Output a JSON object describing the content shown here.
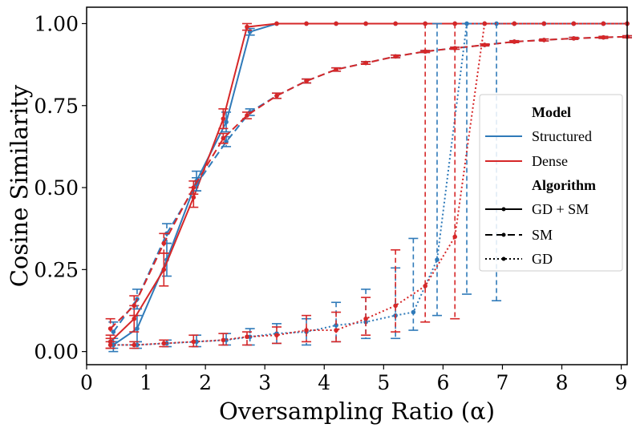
{
  "chart_data": {
    "type": "line",
    "title": "",
    "xlabel": "Oversampling Ratio (α)",
    "ylabel": "Cosine Similarity",
    "xlim": [
      0,
      9.1
    ],
    "ylim": [
      -0.04,
      1.05
    ],
    "xticks": [
      0,
      1,
      2,
      3,
      4,
      5,
      6,
      7,
      8,
      9
    ],
    "yticks": [
      0.0,
      0.25,
      0.5,
      0.75,
      1.0
    ],
    "xtick_labels": [
      "0",
      "1",
      "2",
      "3",
      "4",
      "5",
      "6",
      "7",
      "8",
      "9"
    ],
    "ytick_labels": [
      "0.00",
      "0.25",
      "0.50",
      "0.75",
      "1.00"
    ],
    "grid": false,
    "legend_placement": "center-right",
    "colors": {
      "Structured": "#2f7ab9",
      "Dense": "#d62728"
    },
    "legend": {
      "model_title": "Model",
      "models": [
        "Structured",
        "Dense"
      ],
      "algorithm_title": "Algorithm",
      "algorithms": [
        "GD + SM",
        "SM",
        "GD"
      ]
    },
    "series": [
      {
        "name": "Structured",
        "algorithm": "GD + SM",
        "style": "solid",
        "x": [
          0.45,
          0.85,
          1.35,
          1.85,
          2.35,
          2.75,
          3.2,
          3.7,
          4.2,
          4.7,
          5.2,
          5.7,
          6.2,
          6.7,
          7.2,
          7.7,
          8.2,
          8.7,
          9.1
        ],
        "y": [
          0.02,
          0.07,
          0.28,
          0.52,
          0.7,
          0.975,
          1.0,
          1.0,
          1.0,
          1.0,
          1.0,
          1.0,
          1.0,
          1.0,
          1.0,
          1.0,
          1.0,
          1.0,
          1.0
        ],
        "err": [
          0.02,
          0.04,
          0.05,
          0.03,
          0.03,
          0.01,
          0,
          0,
          0,
          0,
          0,
          0,
          0,
          0,
          0,
          0,
          0,
          0,
          0
        ]
      },
      {
        "name": "Dense",
        "algorithm": "GD + SM",
        "style": "solid",
        "x": [
          0.4,
          0.8,
          1.3,
          1.8,
          2.3,
          2.7,
          3.2,
          3.7,
          4.2,
          4.7,
          5.2,
          5.7,
          6.2,
          6.7,
          7.2,
          7.7,
          8.2,
          8.7,
          9.1
        ],
        "y": [
          0.03,
          0.1,
          0.25,
          0.47,
          0.71,
          0.99,
          1.0,
          1.0,
          1.0,
          1.0,
          1.0,
          1.0,
          1.0,
          1.0,
          1.0,
          1.0,
          1.0,
          1.0,
          1.0
        ],
        "err": [
          0.02,
          0.04,
          0.05,
          0.03,
          0.03,
          0.01,
          0,
          0,
          0,
          0,
          0,
          0,
          0,
          0,
          0,
          0,
          0,
          0,
          0
        ]
      },
      {
        "name": "Structured",
        "algorithm": "SM",
        "style": "dashed",
        "x": [
          0.45,
          0.85,
          1.35,
          1.85,
          2.35,
          2.75,
          3.2,
          3.7,
          4.2,
          4.7,
          5.2,
          5.7,
          6.2,
          6.7,
          7.2,
          7.7,
          8.2,
          8.7,
          9.1
        ],
        "y": [
          0.06,
          0.16,
          0.36,
          0.51,
          0.64,
          0.73,
          0.78,
          0.825,
          0.86,
          0.88,
          0.9,
          0.915,
          0.925,
          0.935,
          0.945,
          0.95,
          0.955,
          0.958,
          0.96
        ],
        "err": [
          0.03,
          0.03,
          0.03,
          0.02,
          0.015,
          0.01,
          0.008,
          0.006,
          0.005,
          0.004,
          0.004,
          0.003,
          0.003,
          0.003,
          0.003,
          0.003,
          0.003,
          0.003,
          0.003
        ]
      },
      {
        "name": "Dense",
        "algorithm": "SM",
        "style": "dashed",
        "x": [
          0.4,
          0.8,
          1.3,
          1.8,
          2.3,
          2.7,
          3.2,
          3.7,
          4.2,
          4.7,
          5.2,
          5.7,
          6.2,
          6.7,
          7.2,
          7.7,
          8.2,
          8.7,
          9.1
        ],
        "y": [
          0.07,
          0.14,
          0.33,
          0.5,
          0.65,
          0.72,
          0.78,
          0.825,
          0.86,
          0.88,
          0.9,
          0.915,
          0.925,
          0.935,
          0.945,
          0.95,
          0.955,
          0.958,
          0.96
        ],
        "err": [
          0.03,
          0.03,
          0.03,
          0.02,
          0.015,
          0.01,
          0.008,
          0.006,
          0.005,
          0.004,
          0.004,
          0.003,
          0.003,
          0.003,
          0.003,
          0.003,
          0.003,
          0.003,
          0.003
        ]
      },
      {
        "name": "Structured",
        "algorithm": "GD",
        "style": "dotted",
        "x": [
          0.45,
          0.85,
          1.35,
          1.85,
          2.35,
          2.75,
          3.2,
          3.7,
          4.2,
          4.7,
          5.2,
          5.5,
          5.9,
          6.4,
          6.9,
          7.2,
          7.7,
          8.2,
          8.7,
          9.1
        ],
        "y": [
          0.02,
          0.02,
          0.025,
          0.03,
          0.035,
          0.045,
          0.055,
          0.06,
          0.08,
          0.09,
          0.11,
          0.12,
          0.28,
          1.0,
          1.0,
          1.0,
          1.0,
          1.0,
          1.0,
          1.0
        ],
        "lo": [
          0.01,
          0.01,
          0.015,
          0.015,
          0.02,
          0.02,
          0.025,
          0.02,
          0.03,
          0.04,
          0.04,
          0.065,
          0.11,
          0.175,
          0.155,
          null,
          null,
          null,
          null,
          null
        ],
        "hi": [
          0.03,
          0.03,
          0.035,
          0.05,
          0.055,
          0.07,
          0.085,
          0.1,
          0.15,
          0.19,
          0.255,
          0.345,
          1.0,
          1.0,
          1.0,
          null,
          null,
          null,
          null,
          null
        ]
      },
      {
        "name": "Dense",
        "algorithm": "GD",
        "style": "dotted",
        "x": [
          0.4,
          0.8,
          1.3,
          1.8,
          2.3,
          2.7,
          3.2,
          3.7,
          4.2,
          4.7,
          5.2,
          5.7,
          6.2,
          6.7,
          7.2,
          7.7,
          8.2,
          8.7,
          9.1
        ],
        "y": [
          0.02,
          0.02,
          0.025,
          0.03,
          0.035,
          0.045,
          0.05,
          0.065,
          0.065,
          0.1,
          0.14,
          0.2,
          0.35,
          1.0,
          1.0,
          1.0,
          1.0,
          1.0,
          1.0
        ],
        "lo": [
          0.01,
          0.01,
          0.015,
          0.015,
          0.02,
          0.02,
          0.025,
          0.03,
          0.03,
          0.05,
          0.06,
          0.09,
          0.1,
          null,
          null,
          null,
          null,
          null,
          null
        ],
        "hi": [
          0.03,
          0.03,
          0.035,
          0.05,
          0.055,
          0.06,
          0.075,
          0.11,
          0.12,
          0.165,
          0.31,
          1.0,
          1.0,
          null,
          null,
          null,
          null,
          null,
          null
        ]
      }
    ]
  }
}
